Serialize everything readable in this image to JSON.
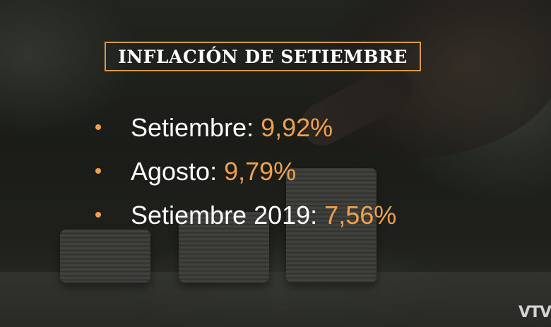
{
  "title": "INFLACIÓN DE SETIEMBRE",
  "items": [
    {
      "label": "Setiembre:",
      "value": "9,92%"
    },
    {
      "label": "Agosto:",
      "value": "9,79%"
    },
    {
      "label": "Setiembre 2019:",
      "value": "7,56%"
    }
  ],
  "logo": "VTV",
  "colors": {
    "accent": "#f0a04f",
    "text": "#ffffff",
    "border": "#d99a4e"
  }
}
